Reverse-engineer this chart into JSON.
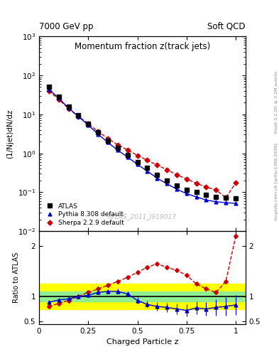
{
  "title_main": "Momentum fraction z(track jets)",
  "top_left_label": "7000 GeV pp",
  "top_right_label": "Soft QCD",
  "right_label_top": "Rivet 3.1.10, ≥ 3.2M events",
  "right_label_bottom": "mcplots.cern.ch [arXiv:1306.3436]",
  "watermark": "ATLAS_2011_I919017",
  "ylabel_main": "(1/Njet)dN/dz",
  "ylabel_ratio": "Ratio to ATLAS",
  "xlabel": "Charged Particle z",
  "ylim_main_log": [
    -2,
    3
  ],
  "ylim_main": [
    0.01,
    1000
  ],
  "ylim_ratio": [
    0.45,
    2.3
  ],
  "xlim": [
    0.0,
    1.05
  ],
  "atlas_x": [
    0.05,
    0.1,
    0.15,
    0.2,
    0.25,
    0.3,
    0.35,
    0.4,
    0.45,
    0.5,
    0.55,
    0.6,
    0.65,
    0.7,
    0.75,
    0.8,
    0.85,
    0.9,
    0.95,
    1.0
  ],
  "atlas_y": [
    50.0,
    28.0,
    16.0,
    9.5,
    5.8,
    3.4,
    2.1,
    1.35,
    0.9,
    0.6,
    0.42,
    0.28,
    0.2,
    0.15,
    0.115,
    0.1,
    0.085,
    0.075,
    0.072,
    0.07
  ],
  "pythia_x": [
    0.05,
    0.1,
    0.15,
    0.2,
    0.25,
    0.3,
    0.35,
    0.4,
    0.45,
    0.5,
    0.55,
    0.6,
    0.65,
    0.7,
    0.75,
    0.8,
    0.85,
    0.9,
    0.95,
    1.0
  ],
  "pythia_y": [
    44.0,
    26.0,
    14.5,
    8.8,
    5.3,
    3.1,
    1.9,
    1.2,
    0.8,
    0.52,
    0.35,
    0.23,
    0.165,
    0.12,
    0.092,
    0.076,
    0.063,
    0.057,
    0.054,
    0.052
  ],
  "sherpa_x": [
    0.05,
    0.1,
    0.15,
    0.2,
    0.25,
    0.3,
    0.35,
    0.4,
    0.45,
    0.5,
    0.55,
    0.6,
    0.65,
    0.7,
    0.75,
    0.8,
    0.85,
    0.9,
    0.95,
    1.0
  ],
  "sherpa_y": [
    40.0,
    24.0,
    14.0,
    8.8,
    5.8,
    3.6,
    2.4,
    1.65,
    1.22,
    0.88,
    0.66,
    0.5,
    0.38,
    0.28,
    0.22,
    0.17,
    0.135,
    0.115,
    0.072,
    0.175
  ],
  "ratio_pythia_x": [
    0.05,
    0.1,
    0.15,
    0.2,
    0.25,
    0.3,
    0.35,
    0.4,
    0.45,
    0.5,
    0.55,
    0.6,
    0.65,
    0.7,
    0.75,
    0.8,
    0.85,
    0.9,
    0.95,
    1.0
  ],
  "ratio_pythia_y": [
    0.88,
    0.93,
    0.95,
    1.0,
    1.02,
    1.08,
    1.1,
    1.1,
    1.05,
    0.92,
    0.84,
    0.8,
    0.78,
    0.75,
    0.72,
    0.77,
    0.75,
    0.78,
    0.8,
    0.83
  ],
  "ratio_pythia_err": [
    0.04,
    0.03,
    0.03,
    0.03,
    0.03,
    0.04,
    0.04,
    0.05,
    0.05,
    0.06,
    0.07,
    0.08,
    0.09,
    0.1,
    0.12,
    0.13,
    0.14,
    0.16,
    0.18,
    0.2
  ],
  "ratio_sherpa_x": [
    0.05,
    0.1,
    0.15,
    0.2,
    0.25,
    0.3,
    0.35,
    0.4,
    0.45,
    0.5,
    0.55,
    0.6,
    0.65,
    0.7,
    0.75,
    0.8,
    0.85,
    0.9,
    0.95,
    1.0
  ],
  "ratio_sherpa_y": [
    0.8,
    0.86,
    0.92,
    1.0,
    1.08,
    1.15,
    1.22,
    1.3,
    1.38,
    1.48,
    1.58,
    1.65,
    1.58,
    1.52,
    1.42,
    1.25,
    1.15,
    1.08,
    1.3,
    2.2
  ],
  "atlas_color": "#000000",
  "pythia_color": "#0000cc",
  "sherpa_color": "#cc0000",
  "band_green_inner": [
    0.9,
    1.1
  ],
  "band_yellow_outer": [
    0.75,
    1.25
  ],
  "legend_entries": [
    "ATLAS",
    "Pythia 8.308 default",
    "Sherpa 2.2.9 default"
  ]
}
